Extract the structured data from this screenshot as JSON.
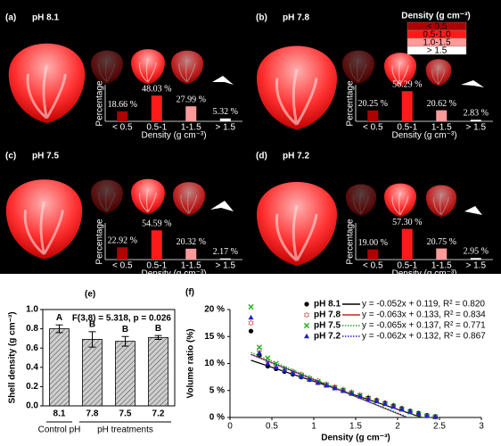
{
  "chart_data": [
    {
      "type": "bar",
      "panel_label": "(a)",
      "title": "pH 8.1",
      "ylabel": "Percentage",
      "xlabel": "Density (g cm⁻³)",
      "categories": [
        "< 0.5",
        "0.5-1",
        "1-1.5",
        "> 1.5"
      ],
      "values": [
        18.66,
        48.03,
        27.99,
        5.32
      ],
      "value_labels": [
        "18.66 %",
        "48.03 %",
        "27.99 %",
        "5.32 %"
      ],
      "colors": [
        "#b00000",
        "#ff1a1a",
        "#ff9a9a",
        "#ffffff"
      ],
      "ylim": [
        0,
        60
      ]
    },
    {
      "type": "bar",
      "panel_label": "(b)",
      "title": "pH 7.8",
      "ylabel": "Percentage",
      "xlabel": "Density (g cm⁻³)",
      "categories": [
        "< 0.5",
        "0.5-1",
        "1-1.5",
        "> 1.5"
      ],
      "values": [
        20.25,
        56.29,
        20.62,
        2.83
      ],
      "value_labels": [
        "20.25 %",
        "56.29 %",
        "20.62 %",
        "2.83 %"
      ],
      "colors": [
        "#b00000",
        "#ff1a1a",
        "#ff9a9a",
        "#ffffff"
      ],
      "ylim": [
        0,
        60
      ],
      "legend": {
        "title": "Density (g cm⁻³)",
        "entries": [
          {
            "label": "< 0.5",
            "color": "#b00000"
          },
          {
            "label": "0.5-1.0",
            "color": "#ff1a1a"
          },
          {
            "label": "1.0-1.5",
            "color": "#ff9a9a"
          },
          {
            "label": "> 1.5",
            "color": "#ffffff"
          }
        ]
      }
    },
    {
      "type": "bar",
      "panel_label": "(c)",
      "title": "pH 7.5",
      "ylabel": "Percentage",
      "xlabel": "Density (g cm⁻³)",
      "categories": [
        "< 0.5",
        "0.5-1",
        "1-1.5",
        "> 1.5"
      ],
      "values": [
        22.92,
        54.59,
        20.32,
        2.17
      ],
      "value_labels": [
        "22.92 %",
        "54.59 %",
        "20.32 %",
        "2.17 %"
      ],
      "colors": [
        "#b00000",
        "#ff1a1a",
        "#ff9a9a",
        "#ffffff"
      ],
      "ylim": [
        0,
        60
      ]
    },
    {
      "type": "bar",
      "panel_label": "(d)",
      "title": "pH 7.2",
      "ylabel": "Percentage",
      "xlabel": "Density (g cm⁻³)",
      "categories": [
        "< 0.5",
        "0.5-1",
        "1-1.5",
        "> 1.5"
      ],
      "values": [
        19.0,
        57.3,
        20.75,
        2.95
      ],
      "value_labels": [
        "19.00 %",
        "57.30 %",
        "20.75 %",
        "2.95 %"
      ],
      "colors": [
        "#b00000",
        "#ff1a1a",
        "#ff9a9a",
        "#ffffff"
      ],
      "ylim": [
        0,
        60
      ]
    },
    {
      "type": "errorbar",
      "panel_label": "(e)",
      "ylabel": "Shell density (g cm⁻³)",
      "annotation": "F(3,8) = 5.318, p = 0.026",
      "categories": [
        "8.1",
        "7.8",
        "7.5",
        "7.2"
      ],
      "values": [
        0.8,
        0.69,
        0.67,
        0.71
      ],
      "errors": [
        0.04,
        0.08,
        0.05,
        0.02
      ],
      "letters": [
        "A",
        "B",
        "B",
        "B"
      ],
      "groups": [
        "Control pH",
        "pH treatments"
      ],
      "color": "#aaaaaa",
      "ylim": [
        0,
        1.0
      ],
      "yticks": [
        {
          "value": 0,
          "label": "0.0"
        },
        0.2,
        0.4,
        0.6,
        0.8,
        {
          "value": 1,
          "label": "1.0"
        }
      ]
    },
    {
      "type": "scatter",
      "panel_label": "(f)",
      "xlabel": "Density (g cm⁻³)",
      "ylabel": "Volume ratio (%)",
      "x": [
        0.25,
        0.35,
        0.45,
        0.55,
        0.65,
        0.75,
        0.85,
        0.95,
        1.05,
        1.15,
        1.25,
        1.35,
        1.45,
        1.55,
        1.65,
        1.75,
        1.85,
        1.95,
        2.05,
        2.15,
        2.25,
        2.35,
        2.45
      ],
      "series": [
        {
          "name": "pH 8.1",
          "color": "#000000",
          "marker": "circle",
          "line_style": "solid",
          "equation": "y = -0.052x + 0.119, R² = 0.820",
          "fit": {
            "slope": -5.2,
            "intercept": 11.9
          },
          "values": [
            16,
            11.5,
            9.5,
            9,
            8.5,
            8,
            7.5,
            7,
            6.5,
            6,
            5.5,
            5,
            4.5,
            4,
            3.6,
            3.2,
            2.7,
            2.2,
            1.7,
            1.2,
            0.8,
            0.4,
            0.2
          ]
        },
        {
          "name": "pH 7.8",
          "color": "#d02020",
          "marker": "star",
          "line_style": "solid",
          "equation": "y = -0.063x + 0.133, R² = 0.834",
          "fit": {
            "slope": -6.3,
            "intercept": 13.3
          },
          "values": [
            17.5,
            12.5,
            10.5,
            9.5,
            9,
            8.5,
            8,
            7.3,
            6.8,
            6.2,
            5.7,
            5.2,
            4.7,
            4.2,
            3.7,
            3.2,
            2.7,
            2.2,
            1.6,
            1.1,
            0.7,
            0.3,
            0.1
          ]
        },
        {
          "name": "pH 7.5",
          "color": "#20b020",
          "marker": "x",
          "line_style": "dotted",
          "equation": "y = -0.065x + 0.137, R² = 0.771",
          "fit": {
            "slope": -6.5,
            "intercept": 13.7
          },
          "values": [
            20.5,
            13,
            11,
            10,
            9,
            8.3,
            7.8,
            7.2,
            6.6,
            6,
            5.5,
            5,
            4.5,
            4,
            3.5,
            3,
            2.5,
            2,
            1.5,
            1,
            0.6,
            0.3,
            0.1
          ]
        },
        {
          "name": "pH 7.2",
          "color": "#2020d0",
          "marker": "triangle",
          "line_style": "dotted",
          "equation": "y = -0.062x + 0.132, R² = 0.867",
          "fit": {
            "slope": -6.2,
            "intercept": 13.2
          },
          "values": [
            18.5,
            12,
            10,
            9.3,
            8.7,
            8.2,
            7.6,
            7,
            6.4,
            5.9,
            5.4,
            4.9,
            4.4,
            3.9,
            3.4,
            3,
            2.5,
            2,
            1.5,
            1.1,
            0.7,
            0.3,
            0.1
          ]
        }
      ],
      "xlim": [
        0,
        3
      ],
      "xticks": [
        0,
        0.5,
        1,
        1.5,
        2,
        2.5,
        3
      ],
      "ylim": [
        0,
        20
      ],
      "yticks": [
        {
          "value": 0,
          "label": "0 %"
        },
        {
          "value": 5,
          "label": "5 %"
        },
        {
          "value": 10,
          "label": "10 %"
        },
        {
          "value": 15,
          "label": "15 %"
        },
        {
          "value": 20,
          "label": "20 %"
        }
      ]
    }
  ]
}
